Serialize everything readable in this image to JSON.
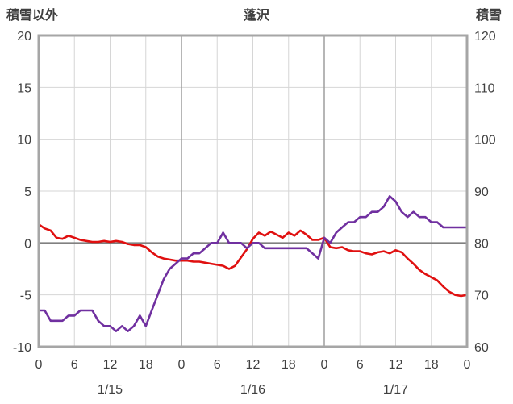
{
  "header": {
    "left_axis_title": "積雪以外",
    "title": "蓬沢",
    "right_axis_title": "積雪"
  },
  "chart_data": {
    "type": "line",
    "title": "蓬沢",
    "x_max_hours": 72,
    "x_tick_interval_hours": 6,
    "x_tick_labels": [
      "0",
      "6",
      "12",
      "18",
      "0",
      "6",
      "12",
      "18",
      "0",
      "6",
      "12",
      "18",
      "0"
    ],
    "date_labels": [
      "1/15",
      "1/16",
      "1/17"
    ],
    "date_label_center_hours": [
      12,
      36,
      60
    ],
    "left_axis": {
      "title": "積雪以外",
      "min": -10,
      "max": 20,
      "tick_step": 5,
      "labels": [
        "20",
        "15",
        "10",
        "5",
        "0",
        "-5",
        "-10"
      ]
    },
    "right_axis": {
      "title": "積雪",
      "min": 60,
      "max": 120,
      "tick_step": 10,
      "labels": [
        "120",
        "110",
        "100",
        "90",
        "80",
        "70",
        "60"
      ]
    },
    "grid": "on",
    "legend": "none",
    "series": [
      {
        "name": "積雪以外",
        "axis": "left",
        "color": "#e01010",
        "values": [
          1.8,
          1.4,
          1.2,
          0.5,
          0.4,
          0.7,
          0.5,
          0.3,
          0.2,
          0.1,
          0.1,
          0.2,
          0.1,
          0.2,
          0.1,
          -0.1,
          -0.2,
          -0.2,
          -0.4,
          -0.9,
          -1.3,
          -1.5,
          -1.6,
          -1.7,
          -1.7,
          -1.7,
          -1.8,
          -1.8,
          -1.9,
          -2.0,
          -2.1,
          -2.2,
          -2.5,
          -2.2,
          -1.4,
          -0.6,
          0.4,
          1.0,
          0.7,
          1.1,
          0.8,
          0.5,
          1.0,
          0.7,
          1.2,
          0.8,
          0.3,
          0.3,
          0.5,
          -0.4,
          -0.5,
          -0.4,
          -0.7,
          -0.8,
          -0.8,
          -1.0,
          -1.1,
          -0.9,
          -0.8,
          -1.0,
          -0.7,
          -0.9,
          -1.5,
          -2.0,
          -2.6,
          -3.0,
          -3.3,
          -3.6,
          -4.2,
          -4.7,
          -5.0,
          -5.1,
          -5.0
        ]
      },
      {
        "name": "積雪",
        "axis": "right",
        "color": "#7030a0",
        "values": [
          67,
          67,
          65,
          65,
          65,
          66,
          66,
          67,
          67,
          67,
          65,
          64,
          64,
          63,
          64,
          63,
          64,
          66,
          64,
          67,
          70,
          73,
          75,
          76,
          77,
          77,
          78,
          78,
          79,
          80,
          80,
          82,
          80,
          80,
          80,
          79,
          80,
          80,
          79,
          79,
          79,
          79,
          79,
          79,
          79,
          79,
          78,
          77,
          81,
          80,
          82,
          83,
          84,
          84,
          85,
          85,
          86,
          86,
          87,
          89,
          88,
          86,
          85,
          86,
          85,
          85,
          84,
          84,
          83,
          83,
          83,
          83,
          83
        ]
      }
    ],
    "style": {
      "frame_color": "#a6a6a6",
      "minor_grid_color": "#d6d6d6",
      "day_grid_color": "#9e9e9e",
      "zero_line_color": "#808080",
      "tick_label_color": "#404040"
    }
  }
}
